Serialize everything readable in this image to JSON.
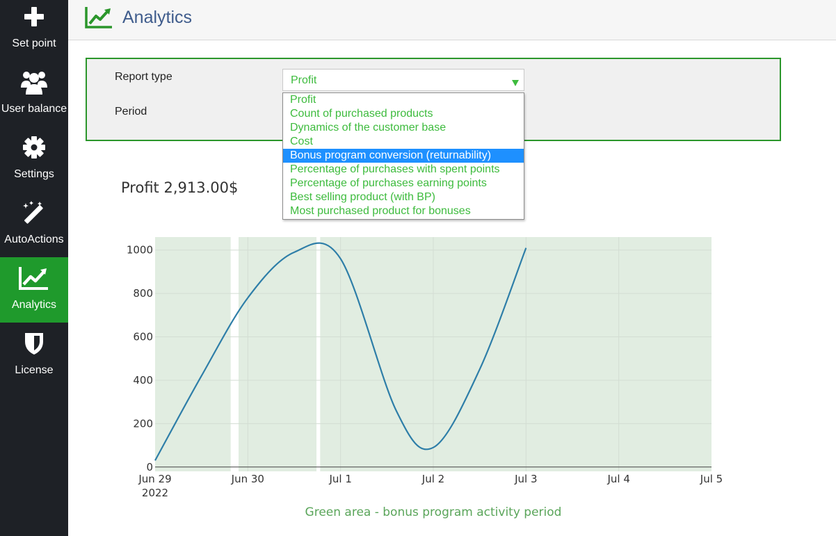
{
  "sidebar": {
    "items": [
      {
        "label": "Set point",
        "icon": "plus-icon"
      },
      {
        "label": "User balance",
        "icon": "users-icon"
      },
      {
        "label": "Settings",
        "icon": "gear-icon"
      },
      {
        "label": "AutoActions",
        "icon": "magic-wand-icon"
      },
      {
        "label": "Analytics",
        "icon": "chart-line-icon",
        "active": true
      },
      {
        "label": "License",
        "icon": "shield-icon"
      }
    ]
  },
  "header": {
    "title": "Analytics"
  },
  "filters": {
    "report_type_label": "Report type",
    "period_label": "Period",
    "report_type_value": "Profit",
    "options": [
      "Profit",
      "Count of purchased products",
      "Dynamics of the customer base",
      "Cost",
      "Bonus program conversion (returnability)",
      "Percentage of purchases with spent points",
      "Percentage of purchases earning points",
      "Best selling product (with BP)",
      "Most purchased product for bonuses"
    ],
    "highlighted_option_index": 4
  },
  "chart_title": "Profit 2,913.00$",
  "footnote": "Green area - bonus program activity period",
  "colors": {
    "sidebar_bg": "#1e2126",
    "active_nav": "#1f9a2c",
    "accent_green": "#3dbb3d",
    "line": "#2e7ea8",
    "plot_bg": "#e1ede1"
  },
  "chart_data": {
    "type": "line",
    "title": "Profit 2,913.00$",
    "xlabel": "",
    "ylabel": "",
    "x_tick_labels": [
      "Jun 29",
      "Jun 30",
      "Jul 1",
      "Jul 2",
      "Jul 3",
      "Jul 4",
      "Jul 5"
    ],
    "x_year_label": "2022",
    "y_ticks": [
      0,
      200,
      400,
      600,
      800,
      1000
    ],
    "xlim_days": [
      0,
      6
    ],
    "ylim": [
      -20,
      1060
    ],
    "series": [
      {
        "name": "Profit",
        "x_days": [
          0,
          0.5,
          1,
          1.5,
          2,
          2.6,
          3,
          3.5,
          4
        ],
        "values": [
          30,
          420,
          780,
          990,
          960,
          260,
          90,
          450,
          1010
        ]
      }
    ],
    "bonus_periods_days": [
      [
        0,
        0.815
      ],
      [
        0.9,
        1.74
      ],
      [
        1.78,
        6
      ]
    ],
    "legend": "none"
  }
}
